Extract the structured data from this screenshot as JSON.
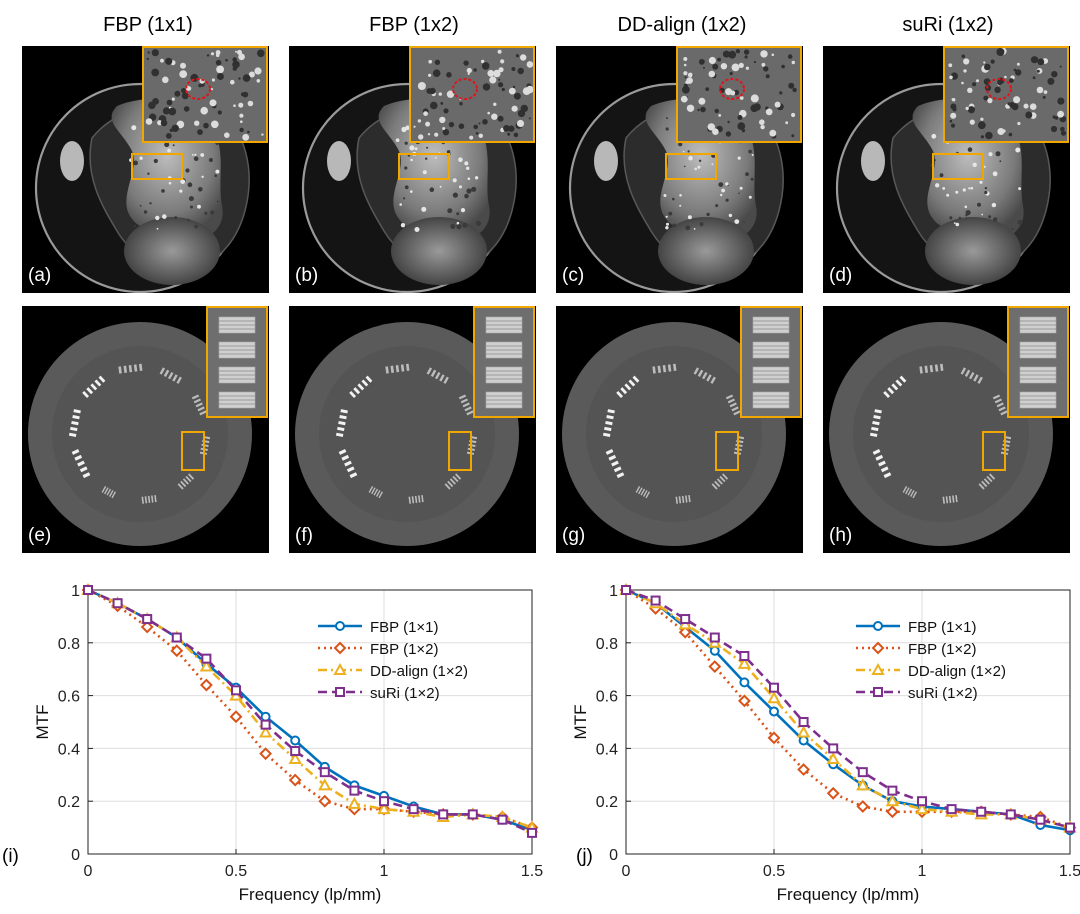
{
  "column_titles": [
    "FBP (1x1)",
    "FBP (1x2)",
    "DD-align (1x2)",
    "suRi (1x2)"
  ],
  "panel_labels": [
    "(a)",
    "(b)",
    "(c)",
    "(d)",
    "(e)",
    "(f)",
    "(g)",
    "(h)"
  ],
  "chart_labels": [
    "(i)",
    "(j)"
  ],
  "colors": {
    "inset_border": "#f0a800",
    "roi_circle": "#e0141a"
  },
  "chart_data": [
    {
      "type": "line",
      "xlabel": "Frequency (lp/mm)",
      "ylabel": "MTF",
      "xlim": [
        0,
        1.5
      ],
      "ylim": [
        0,
        1
      ],
      "xticks": [
        "0",
        "0.5",
        "1",
        "1.5"
      ],
      "yticks": [
        "0",
        "0.2",
        "0.4",
        "0.6",
        "0.8",
        "1"
      ],
      "grid": true,
      "legend": "top-right",
      "x": [
        0,
        0.1,
        0.2,
        0.3,
        0.4,
        0.5,
        0.6,
        0.7,
        0.8,
        0.9,
        1.0,
        1.1,
        1.2,
        1.3,
        1.4,
        1.5
      ],
      "series": [
        {
          "name": "FBP (1×1)",
          "color": "#0072bd",
          "dash": "solid",
          "marker": "circle",
          "values": [
            1.0,
            0.95,
            0.89,
            0.82,
            0.72,
            0.63,
            0.52,
            0.43,
            0.33,
            0.26,
            0.22,
            0.18,
            0.15,
            0.15,
            0.13,
            0.09
          ]
        },
        {
          "name": "FBP (1×2)",
          "color": "#d95319",
          "dash": "dotted",
          "marker": "diamond",
          "values": [
            1.0,
            0.94,
            0.86,
            0.77,
            0.64,
            0.52,
            0.38,
            0.28,
            0.2,
            0.17,
            0.17,
            0.16,
            0.15,
            0.15,
            0.14,
            0.1
          ]
        },
        {
          "name": "DD-align (1×2)",
          "color": "#edb120",
          "dash": "dashdot",
          "marker": "triangle",
          "values": [
            1.0,
            0.95,
            0.89,
            0.82,
            0.71,
            0.6,
            0.46,
            0.36,
            0.26,
            0.19,
            0.17,
            0.16,
            0.14,
            0.15,
            0.14,
            0.1
          ]
        },
        {
          "name": "suRi (1×2)",
          "color": "#7e2f8e",
          "dash": "dashed",
          "marker": "square",
          "values": [
            1.0,
            0.95,
            0.89,
            0.82,
            0.74,
            0.62,
            0.49,
            0.39,
            0.31,
            0.24,
            0.2,
            0.17,
            0.15,
            0.15,
            0.13,
            0.08
          ]
        }
      ]
    },
    {
      "type": "line",
      "xlabel": "Frequency (lp/mm)",
      "ylabel": "MTF",
      "xlim": [
        0,
        1.5
      ],
      "ylim": [
        0,
        1
      ],
      "xticks": [
        "0",
        "0.5",
        "1",
        "1.5"
      ],
      "yticks": [
        "0",
        "0.2",
        "0.4",
        "0.6",
        "0.8",
        "1"
      ],
      "grid": true,
      "legend": "top-right",
      "x": [
        0,
        0.1,
        0.2,
        0.3,
        0.4,
        0.5,
        0.6,
        0.7,
        0.8,
        0.9,
        1.0,
        1.1,
        1.2,
        1.3,
        1.4,
        1.5
      ],
      "series": [
        {
          "name": "FBP (1×1)",
          "color": "#0072bd",
          "dash": "solid",
          "marker": "circle",
          "values": [
            1.0,
            0.95,
            0.86,
            0.77,
            0.65,
            0.54,
            0.43,
            0.34,
            0.26,
            0.2,
            0.18,
            0.17,
            0.16,
            0.15,
            0.11,
            0.09
          ]
        },
        {
          "name": "FBP (1×2)",
          "color": "#d95319",
          "dash": "dotted",
          "marker": "diamond",
          "values": [
            1.0,
            0.93,
            0.84,
            0.71,
            0.58,
            0.44,
            0.32,
            0.23,
            0.18,
            0.16,
            0.16,
            0.16,
            0.16,
            0.15,
            0.14,
            0.1
          ]
        },
        {
          "name": "DD-align (1×2)",
          "color": "#edb120",
          "dash": "dashdot",
          "marker": "triangle",
          "values": [
            1.0,
            0.95,
            0.87,
            0.8,
            0.72,
            0.59,
            0.46,
            0.36,
            0.26,
            0.2,
            0.17,
            0.16,
            0.15,
            0.15,
            0.13,
            0.1
          ]
        },
        {
          "name": "suRi (1×2)",
          "color": "#7e2f8e",
          "dash": "dashed",
          "marker": "square",
          "values": [
            1.0,
            0.96,
            0.89,
            0.82,
            0.75,
            0.63,
            0.5,
            0.4,
            0.31,
            0.24,
            0.2,
            0.17,
            0.16,
            0.15,
            0.13,
            0.1
          ]
        }
      ]
    }
  ]
}
